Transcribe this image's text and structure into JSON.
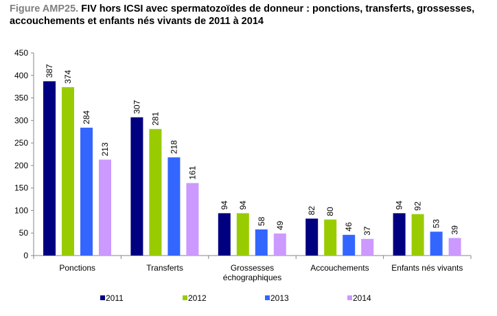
{
  "title": {
    "figure_label": "Figure AMP25.",
    "text": " FIV hors ICSI avec spermatozoïdes de donneur : ponctions, transferts, grossesses, accouchements et enfants nés vivants de 2011 à 2014"
  },
  "chart_data": {
    "type": "bar",
    "title": "Figure AMP25. FIV hors ICSI avec spermatozoïdes de donneur : ponctions, transferts, grossesses, accouchements et enfants nés vivants de 2011 à 2014",
    "categories": [
      [
        "Ponctions"
      ],
      [
        "Transferts"
      ],
      [
        "Grossesses",
        "échographiques"
      ],
      [
        "Accouchements"
      ],
      [
        "Enfants nés vivants"
      ]
    ],
    "series": [
      {
        "name": "2011",
        "color": "#000080",
        "values": [
          387,
          307,
          94,
          82,
          94
        ]
      },
      {
        "name": "2012",
        "color": "#99cc00",
        "values": [
          374,
          281,
          94,
          80,
          92
        ]
      },
      {
        "name": "2013",
        "color": "#3366ff",
        "values": [
          284,
          218,
          58,
          46,
          53
        ]
      },
      {
        "name": "2014",
        "color": "#cc99ff",
        "values": [
          213,
          161,
          49,
          37,
          39
        ]
      }
    ],
    "yticks": [
      0,
      50,
      100,
      150,
      200,
      250,
      300,
      350,
      400,
      450
    ],
    "ylim": [
      0,
      450
    ],
    "xlabel": "",
    "ylabel": "",
    "grid": false,
    "legend": "bottom"
  }
}
